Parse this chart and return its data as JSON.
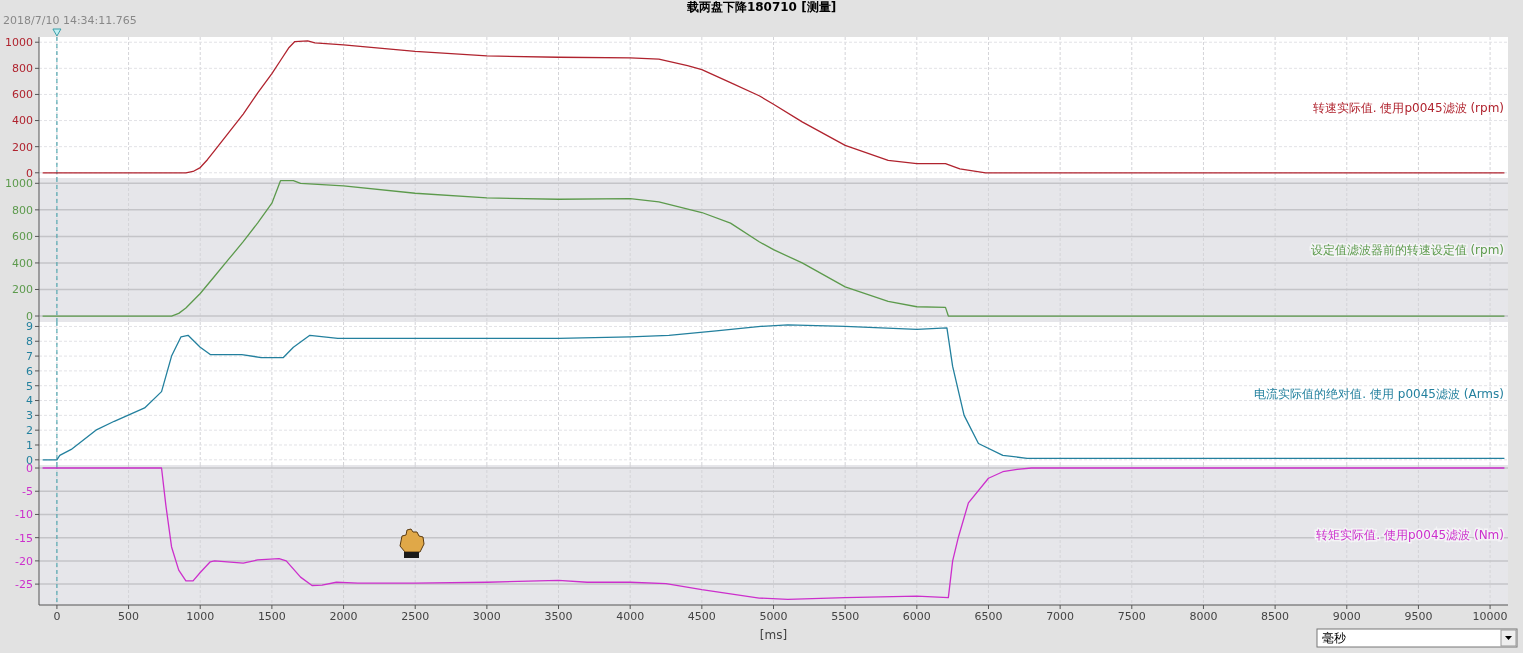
{
  "chart_data": [
    {
      "type": "line",
      "title": "载两盘下降180710 [测量]",
      "annotations": [
        "2018/7/10 14:34:11.765"
      ],
      "xlim": [
        -125,
        10125
      ],
      "xticks": [
        0,
        500,
        1000,
        1500,
        2000,
        2500,
        3000,
        3500,
        4000,
        4500,
        5000,
        5500,
        6000,
        6500,
        7000,
        7500,
        8000,
        8500,
        9000,
        9500,
        10000
      ],
      "ylim": [
        -40,
        1040
      ],
      "yticks": [
        0,
        200,
        400,
        600,
        800,
        1000
      ],
      "grid": true,
      "tick_labels": "y",
      "ref_lines": [
        {
          "axis": "x",
          "value": 0,
          "color": "#3a9ea8",
          "line_style": "dashed"
        }
      ],
      "x": [
        -100,
        900,
        950,
        1000,
        1050,
        1100,
        1200,
        1300,
        1400,
        1500,
        1560,
        1620,
        1660,
        1750,
        1800,
        2000,
        2500,
        3000,
        3500,
        4000,
        4200,
        4400,
        4500,
        4700,
        4900,
        5000,
        5200,
        5500,
        5800,
        6000,
        6200,
        6300,
        6480,
        10100
      ],
      "series": [
        {
          "name": "转速实际值. 使用p0045滤波 (rpm)",
          "color": "#b0232e",
          "values": [
            0,
            0,
            10,
            40,
            100,
            170,
            310,
            450,
            610,
            760,
            860,
            960,
            1005,
            1010,
            995,
            980,
            930,
            895,
            885,
            880,
            870,
            820,
            790,
            690,
            590,
            525,
            390,
            210,
            95,
            70,
            70,
            30,
            0,
            0
          ]
        }
      ]
    },
    {
      "type": "line",
      "xlim": [
        -125,
        10125
      ],
      "xticks": [
        0,
        500,
        1000,
        1500,
        2000,
        2500,
        3000,
        3500,
        4000,
        4500,
        5000,
        5500,
        6000,
        6500,
        7000,
        7500,
        8000,
        8500,
        9000,
        9500,
        10000
      ],
      "ylim": [
        -45,
        1040
      ],
      "yticks": [
        0,
        200,
        400,
        600,
        800,
        1000
      ],
      "grid": true,
      "tick_labels": "y",
      "ref_lines": [
        {
          "axis": "x",
          "value": 0,
          "color": "#3a9ea8",
          "line_style": "dashed"
        }
      ],
      "x": [
        -100,
        800,
        850,
        900,
        1000,
        1100,
        1200,
        1300,
        1400,
        1500,
        1560,
        1650,
        1700,
        2000,
        2500,
        3000,
        3500,
        4000,
        4200,
        4500,
        4700,
        4900,
        5000,
        5200,
        5500,
        5800,
        6000,
        6200,
        6220,
        10100
      ],
      "series": [
        {
          "name": "设定值滤波器前的转速设定值 (rpm)",
          "color": "#5c9a4c",
          "values": [
            0,
            0,
            20,
            60,
            170,
            300,
            430,
            560,
            700,
            850,
            1020,
            1020,
            1000,
            980,
            925,
            890,
            880,
            885,
            860,
            780,
            700,
            560,
            500,
            400,
            220,
            110,
            70,
            65,
            0,
            0
          ]
        }
      ]
    },
    {
      "type": "line",
      "xlim": [
        -125,
        10125
      ],
      "xticks": [
        0,
        500,
        1000,
        1500,
        2000,
        2500,
        3000,
        3500,
        4000,
        4500,
        5000,
        5500,
        6000,
        6500,
        7000,
        7500,
        8000,
        8500,
        9000,
        9500,
        10000
      ],
      "ylim": [
        -0.35,
        9.3
      ],
      "yticks": [
        0,
        1,
        2,
        3,
        4,
        5,
        6,
        7,
        8,
        9
      ],
      "grid": true,
      "tick_labels": "y",
      "ref_lines": [
        {
          "axis": "x",
          "value": 0,
          "color": "#3a9ea8",
          "line_style": "dashed"
        }
      ],
      "x": [
        -100,
        0,
        20,
        100,
        272,
        400,
        612,
        730,
        800,
        866,
        915,
        1000,
        1070,
        1290,
        1425,
        1580,
        1650,
        1765,
        1960,
        2500,
        3000,
        3500,
        4000,
        4270,
        4600,
        4910,
        5100,
        5500,
        6000,
        6210,
        6250,
        6330,
        6430,
        6600,
        6770,
        10100
      ],
      "series": [
        {
          "name": "电流实际值的绝对值. 使用 p0045滤波 (Arms)",
          "color": "#23809e",
          "values": [
            0,
            0,
            0.3,
            0.7,
            2.0,
            2.6,
            3.5,
            4.6,
            7.0,
            8.3,
            8.4,
            7.6,
            7.1,
            7.1,
            6.9,
            6.9,
            7.6,
            8.4,
            8.2,
            8.2,
            8.2,
            8.2,
            8.3,
            8.4,
            8.7,
            9.0,
            9.1,
            9.0,
            8.8,
            8.9,
            6.3,
            3.0,
            1.1,
            0.3,
            0.1,
            0.1
          ]
        }
      ]
    },
    {
      "type": "line",
      "xlabel": "[ms]",
      "annotations": [
        "毫秒"
      ],
      "xlim": [
        -125,
        10125
      ],
      "xticks": [
        0,
        500,
        1000,
        1500,
        2000,
        2500,
        3000,
        3500,
        4000,
        4500,
        5000,
        5500,
        6000,
        6500,
        7000,
        7500,
        8000,
        8500,
        9000,
        9500,
        10000
      ],
      "ylim": [
        -29.5,
        0.65
      ],
      "yticks": [
        -25,
        -20,
        -15,
        -10,
        -5,
        0
      ],
      "grid": true,
      "ref_lines": [
        {
          "axis": "x",
          "value": 0,
          "color": "#3a9ea8",
          "line_style": "dashed"
        }
      ],
      "x": [
        -100,
        730,
        760,
        800,
        850,
        900,
        950,
        1000,
        1070,
        1100,
        1300,
        1400,
        1550,
        1600,
        1700,
        1780,
        1850,
        1950,
        2100,
        2500,
        3000,
        3500,
        3700,
        4000,
        4250,
        4500,
        4900,
        5100,
        5500,
        6000,
        6220,
        6250,
        6290,
        6360,
        6500,
        6600,
        6700,
        6800,
        10100
      ],
      "series": [
        {
          "name": "转矩实际值. 使用p0045滤波 (Nm)",
          "color": "#cc2fcc",
          "values": [
            0,
            0,
            -8,
            -17,
            -22,
            -24.3,
            -24.3,
            -22.5,
            -20.2,
            -20,
            -20.5,
            -19.8,
            -19.5,
            -20,
            -23.5,
            -25.3,
            -25.2,
            -24.6,
            -24.8,
            -24.8,
            -24.6,
            -24.2,
            -24.6,
            -24.6,
            -24.9,
            -26.2,
            -28,
            -28.3,
            -27.9,
            -27.6,
            -27.9,
            -20,
            -14.9,
            -7.5,
            -2.2,
            -0.8,
            -0.3,
            0,
            0
          ]
        }
      ]
    }
  ]
}
